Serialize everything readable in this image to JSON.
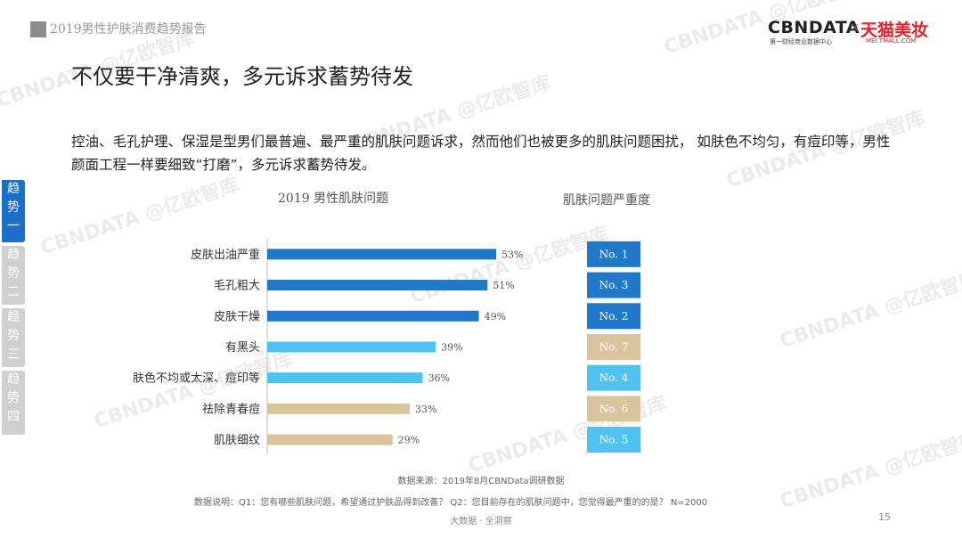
{
  "header": {
    "report_title": "2019男性护肤消费趋势报告",
    "logo_left": "CBNDATA",
    "logo_left_sub": "第一财经商业数据中心",
    "logo_sep": "×",
    "logo_right": "天猫美妆",
    "logo_right_sub": "MEI.TMALL.COM"
  },
  "title": "不仅要干净清爽，多元诉求蓄势待发",
  "description": "控油、毛孔护理、保湿是型男们最普遍、最严重的肌肤问题诉求，然而他们也被更多的肌肤问题困扰， 如肤色不均匀，有痘印等，男性颜面工程一样要细致“打磨”，多元诉求蓄势待发。",
  "side_tabs": [
    "趋\n势\n一",
    "趋\n势\n二",
    "趋\n势\n三",
    "趋\n势\n四"
  ],
  "watermark": "CBNDATA @亿欧智库",
  "colors": {
    "dark_blue": "#1f78c8",
    "light_blue": "#4fc3ef",
    "tan": "#d9c49b",
    "sev_dark": "#1f78c8",
    "sev_light": "#4fc3ef",
    "sev_tan": "#d9c49b"
  },
  "chart_data": {
    "type": "bar",
    "orientation": "horizontal",
    "title": "2019 男性肌肤问题",
    "categories": [
      "皮肤出油严重",
      "毛孔粗大",
      "皮肤干燥",
      "有黑头",
      "肤色不均或太深、痘印等",
      "祛除青春痘",
      "肌肤细纹"
    ],
    "values": [
      53,
      51,
      49,
      39,
      36,
      33,
      29
    ],
    "value_labels": [
      "53%",
      "51%",
      "49%",
      "39%",
      "36%",
      "33%",
      "29%"
    ],
    "bar_colors": [
      "dark_blue",
      "dark_blue",
      "dark_blue",
      "light_blue",
      "light_blue",
      "tan",
      "tan"
    ],
    "severity_title": "肌肤问题严重度",
    "severity": [
      "No. 1",
      "No. 3",
      "No. 2",
      "No. 7",
      "No. 4",
      "No. 6",
      "No. 5"
    ],
    "severity_colors": [
      "sev_dark",
      "sev_dark",
      "sev_dark",
      "sev_tan",
      "sev_light",
      "sev_tan",
      "sev_light"
    ]
  },
  "source": "数据来源：2019年8月CBNData调研数据",
  "note": "数据说明：Q1：您有哪些肌肤问题，希望通过护肤品得到改善？ Q2：您目前存在的肌肤问题中，您觉得最严重的的是？ N=2000",
  "footer": "大数据 · 全洞察",
  "page_number": "15"
}
